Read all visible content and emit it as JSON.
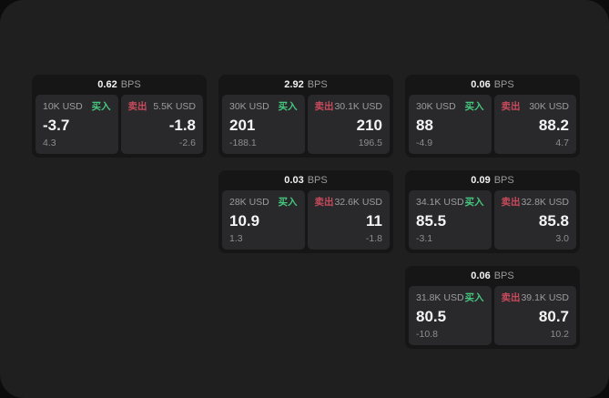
{
  "labels": {
    "bps_unit": "BPS",
    "buy": "买入",
    "sell": "卖出"
  },
  "colors": {
    "page_bg": "#1f1f1f",
    "card_bg": "#161617",
    "panel_bg": "#29292b",
    "buy_green": "#45c77e",
    "sell_red": "#c84a5c"
  },
  "cards": [
    {
      "bps": "0.62",
      "buy": {
        "amount": "10K USD",
        "price": "-3.7",
        "change": "4.3"
      },
      "sell": {
        "amount": "5.5K USD",
        "price": "-1.8",
        "change": "-2.6"
      }
    },
    {
      "bps": "2.92",
      "buy": {
        "amount": "30K USD",
        "price": "201",
        "change": "-188.1"
      },
      "sell": {
        "amount": "30.1K USD",
        "price": "210",
        "change": "196.5"
      }
    },
    {
      "bps": "0.06",
      "buy": {
        "amount": "30K USD",
        "price": "88",
        "change": "-4.9"
      },
      "sell": {
        "amount": "30K USD",
        "price": "88.2",
        "change": "4.7"
      }
    },
    {
      "bps": "0.03",
      "buy": {
        "amount": "28K USD",
        "price": "10.9",
        "change": "1.3"
      },
      "sell": {
        "amount": "32.6K USD",
        "price": "11",
        "change": "-1.8"
      }
    },
    {
      "bps": "0.09",
      "buy": {
        "amount": "34.1K USD",
        "price": "85.5",
        "change": "-3.1"
      },
      "sell": {
        "amount": "32.8K USD",
        "price": "85.8",
        "change": "3.0"
      }
    },
    {
      "bps": "0.06",
      "buy": {
        "amount": "31.8K USD",
        "price": "80.5",
        "change": "-10.8"
      },
      "sell": {
        "amount": "39.1K USD",
        "price": "80.7",
        "change": "10.2"
      }
    }
  ]
}
